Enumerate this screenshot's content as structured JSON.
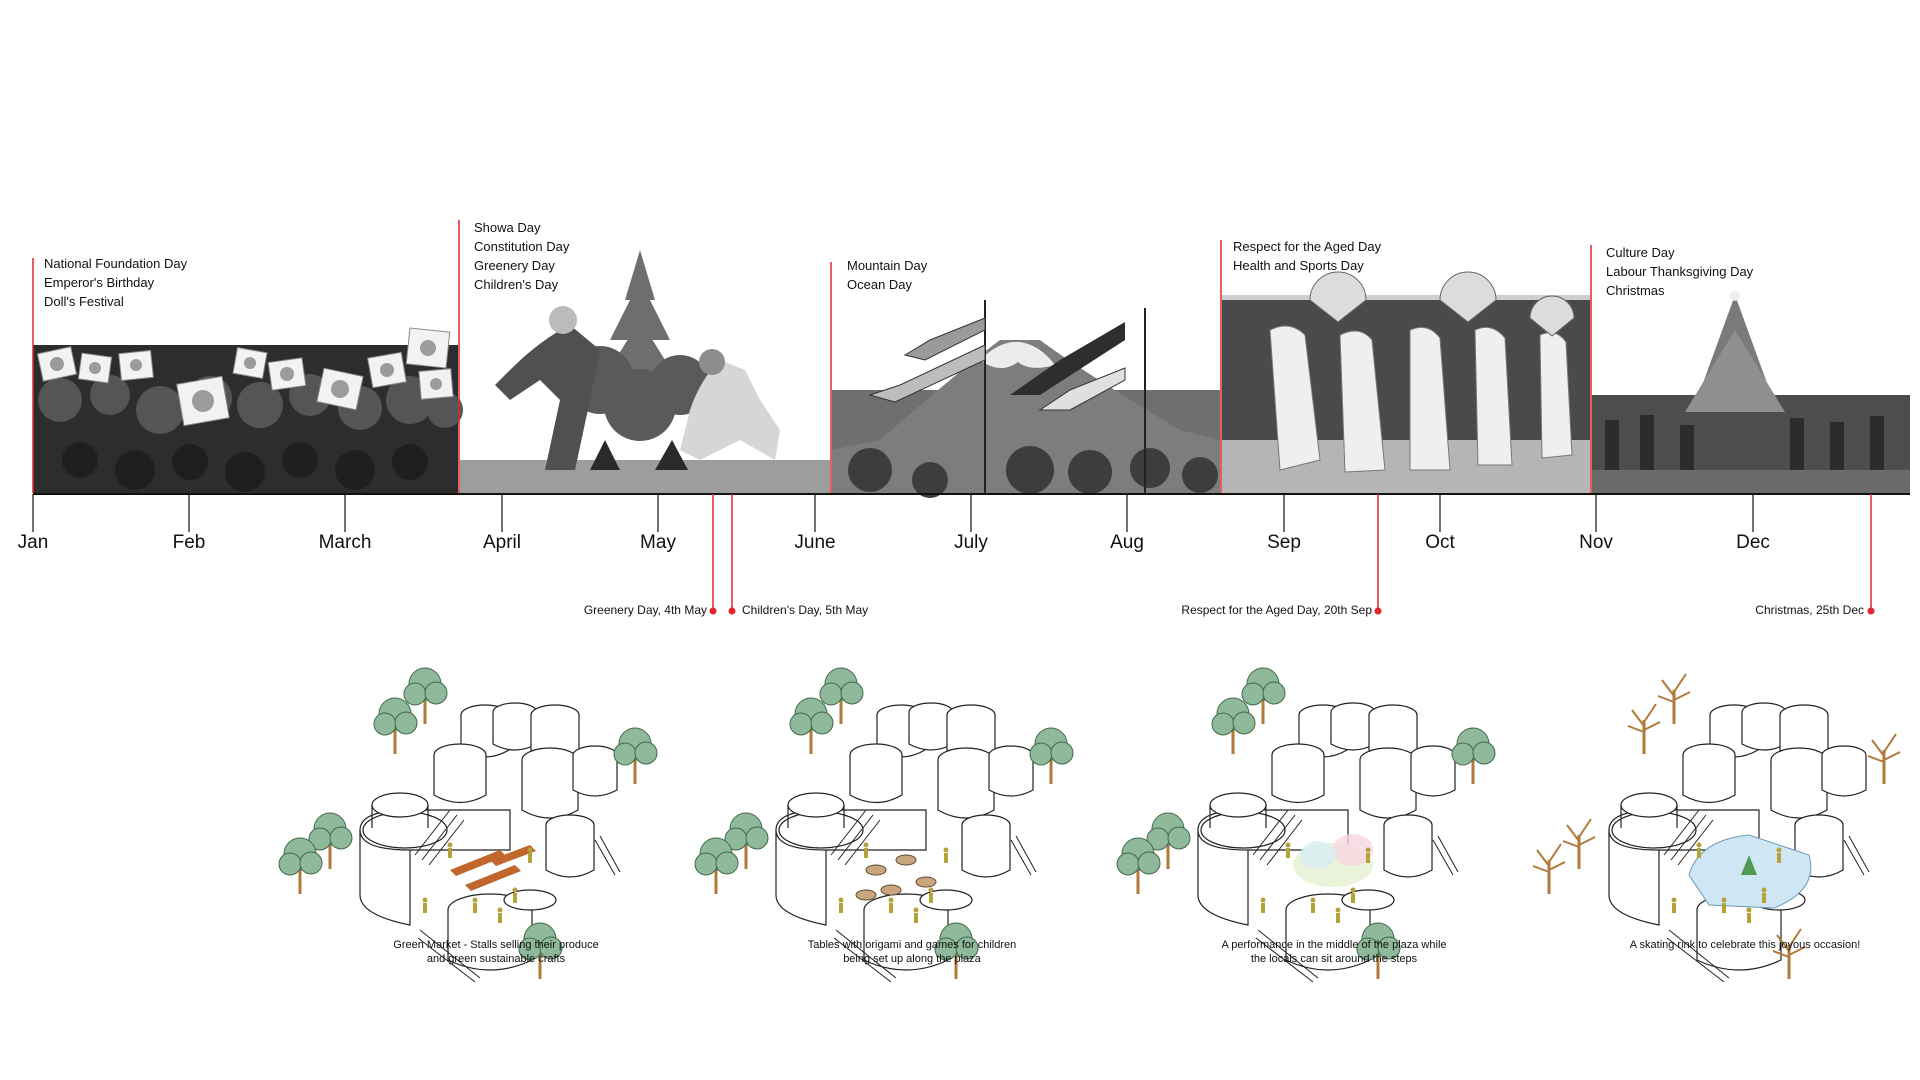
{
  "months": [
    "Jan",
    "Feb",
    "March",
    "April",
    "May",
    "June",
    "July",
    "Aug",
    "Sep",
    "Oct",
    "Nov",
    "Dec"
  ],
  "periods": [
    {
      "holidays": [
        "National Foundation Day",
        "Emperor's Birthday",
        "Doll's Festival"
      ],
      "photo": "crowd waving flags"
    },
    {
      "holidays": [
        "Showa Day",
        "Constitution Day",
        "Greenery Day",
        "Children's Day"
      ],
      "photo": "tree planting"
    },
    {
      "holidays": [
        "Mountain Day",
        "Ocean Day"
      ],
      "photo": "mountain with carp streamers"
    },
    {
      "holidays": [
        "Respect for the Aged Day",
        "Health and Sports Day"
      ],
      "photo": "fan dancers"
    },
    {
      "holidays": [
        "Culture Day",
        "Labour Thanksgiving Day",
        "Christmas"
      ],
      "photo": "christmas tree plaza"
    }
  ],
  "events": [
    "Greenery Day, 4th May",
    "Children's Day, 5th May",
    "Respect for the Aged Day, 20th Sep",
    "Christmas, 25th Dec"
  ],
  "scenes": [
    {
      "caption": [
        "Green Market - Stalls selling their produce",
        "and green sustainable crafts"
      ]
    },
    {
      "caption": [
        "Tables with origami and games for children",
        "being set up along the plaza"
      ]
    },
    {
      "caption": [
        "A performance in the middle of the plaza while",
        "the locals can sit around the steps"
      ]
    },
    {
      "caption": [
        "A skating rink to celebrate this joyous occasion!"
      ]
    }
  ],
  "colors": {
    "accent": "#e0262b",
    "axis": "#111111",
    "photo_dark": "#3a3a3a",
    "foliage": "#8fb99a",
    "trunk": "#b07a3a",
    "figure": "#b4a23a",
    "rink": "#cfe6f5"
  }
}
